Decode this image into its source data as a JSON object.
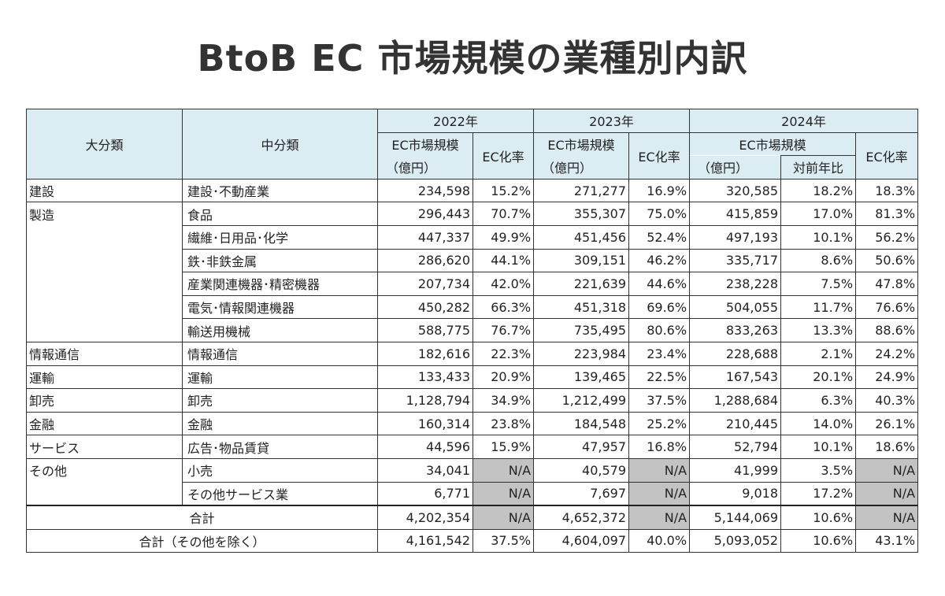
{
  "title": "BtoB EC 市場規模の業種別内訳",
  "header": {
    "major": "大分類",
    "minor": "中分類",
    "years": [
      "2022年",
      "2023年",
      "2024年"
    ],
    "ec_size": "EC市場規模",
    "ec_rate": "EC化率",
    "unit": "（億円）",
    "yoy": "対前年比"
  },
  "rows": [
    {
      "major": "建設",
      "minor": "建設･不動産業",
      "v22": "234,598",
      "r22": "15.2%",
      "v23": "271,277",
      "r23": "16.9%",
      "v24": "320,585",
      "y24": "18.2%",
      "r24": "18.3%"
    },
    {
      "major": "製造",
      "minor": "食品",
      "v22": "296,443",
      "r22": "70.7%",
      "v23": "355,307",
      "r23": "75.0%",
      "v24": "415,859",
      "y24": "17.0%",
      "r24": "81.3%"
    },
    {
      "major": "",
      "minor": "繊維･日用品･化学",
      "v22": "447,337",
      "r22": "49.9%",
      "v23": "451,456",
      "r23": "52.4%",
      "v24": "497,193",
      "y24": "10.1%",
      "r24": "56.2%"
    },
    {
      "major": "",
      "minor": "鉄･非鉄金属",
      "v22": "286,620",
      "r22": "44.1%",
      "v23": "309,151",
      "r23": "46.2%",
      "v24": "335,717",
      "y24": "8.6%",
      "r24": "50.6%"
    },
    {
      "major": "",
      "minor": "産業関連機器･精密機器",
      "v22": "207,734",
      "r22": "42.0%",
      "v23": "221,639",
      "r23": "44.6%",
      "v24": "238,228",
      "y24": "7.5%",
      "r24": "47.8%"
    },
    {
      "major": "",
      "minor": "電気･情報関連機器",
      "v22": "450,282",
      "r22": "66.3%",
      "v23": "451,318",
      "r23": "69.6%",
      "v24": "504,055",
      "y24": "11.7%",
      "r24": "76.6%"
    },
    {
      "major": "",
      "minor": "輸送用機械",
      "v22": "588,775",
      "r22": "76.7%",
      "v23": "735,495",
      "r23": "80.6%",
      "v24": "833,263",
      "y24": "13.3%",
      "r24": "88.6%"
    },
    {
      "major": "情報通信",
      "minor": "情報通信",
      "v22": "182,616",
      "r22": "22.3%",
      "v23": "223,984",
      "r23": "23.4%",
      "v24": "228,688",
      "y24": "2.1%",
      "r24": "24.2%"
    },
    {
      "major": "運輸",
      "minor": "運輸",
      "v22": "133,433",
      "r22": "20.9%",
      "v23": "139,465",
      "r23": "22.5%",
      "v24": "167,543",
      "y24": "20.1%",
      "r24": "24.9%"
    },
    {
      "major": "卸売",
      "minor": "卸売",
      "v22": "1,128,794",
      "r22": "34.9%",
      "v23": "1,212,499",
      "r23": "37.5%",
      "v24": "1,288,684",
      "y24": "6.3%",
      "r24": "40.3%"
    },
    {
      "major": "金融",
      "minor": "金融",
      "v22": "160,314",
      "r22": "23.8%",
      "v23": "184,548",
      "r23": "25.2%",
      "v24": "210,445",
      "y24": "14.0%",
      "r24": "26.1%"
    },
    {
      "major": "サービス",
      "minor": "広告･物品賃貸",
      "v22": "44,596",
      "r22": "15.9%",
      "v23": "47,957",
      "r23": "16.8%",
      "v24": "52,794",
      "y24": "10.1%",
      "r24": "18.6%"
    },
    {
      "major": "その他",
      "minor": "小売",
      "v22": "34,041",
      "r22": "N/A",
      "v23": "40,579",
      "r23": "N/A",
      "v24": "41,999",
      "y24": "3.5%",
      "r24": "N/A"
    },
    {
      "major": "",
      "minor": "その他サービス業",
      "v22": "6,771",
      "r22": "N/A",
      "v23": "7,697",
      "r23": "N/A",
      "v24": "9,018",
      "y24": "17.2%",
      "r24": "N/A"
    }
  ],
  "totals": [
    {
      "label": "合計",
      "v22": "4,202,354",
      "r22": "N/A",
      "v23": "4,652,372",
      "r23": "N/A",
      "v24": "5,144,069",
      "y24": "10.6%",
      "r24": "N/A"
    },
    {
      "label": "合計（その他を除く）",
      "v22": "4,161,542",
      "r22": "37.5%",
      "v23": "4,604,097",
      "r23": "40.0%",
      "v24": "5,093,052",
      "y24": "10.6%",
      "r24": "43.1%"
    }
  ]
}
